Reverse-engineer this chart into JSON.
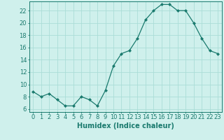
{
  "x": [
    0,
    1,
    2,
    3,
    4,
    5,
    6,
    7,
    8,
    9,
    10,
    11,
    12,
    13,
    14,
    15,
    16,
    17,
    18,
    19,
    20,
    21,
    22,
    23
  ],
  "y": [
    8.8,
    8.0,
    8.5,
    7.5,
    6.5,
    6.5,
    8.0,
    7.5,
    6.5,
    9.0,
    13.0,
    15.0,
    15.5,
    17.5,
    20.5,
    22.0,
    23.0,
    23.0,
    22.0,
    22.0,
    20.0,
    17.5,
    15.5,
    15.0
  ],
  "line_color": "#1a7a6e",
  "marker": "D",
  "marker_size": 2.0,
  "bg_color": "#cff0ec",
  "grid_color": "#aaddd7",
  "xlabel": "Humidex (Indice chaleur)",
  "xlim": [
    -0.5,
    23.5
  ],
  "ylim": [
    5.5,
    23.5
  ],
  "yticks": [
    6,
    8,
    10,
    12,
    14,
    16,
    18,
    20,
    22
  ],
  "xticks": [
    0,
    1,
    2,
    3,
    4,
    5,
    6,
    7,
    8,
    9,
    10,
    11,
    12,
    13,
    14,
    15,
    16,
    17,
    18,
    19,
    20,
    21,
    22,
    23
  ],
  "tick_color": "#1a7a6e",
  "label_fontsize": 7.0,
  "tick_fontsize": 6.0,
  "spine_color": "#1a7a6e",
  "linewidth": 0.9
}
